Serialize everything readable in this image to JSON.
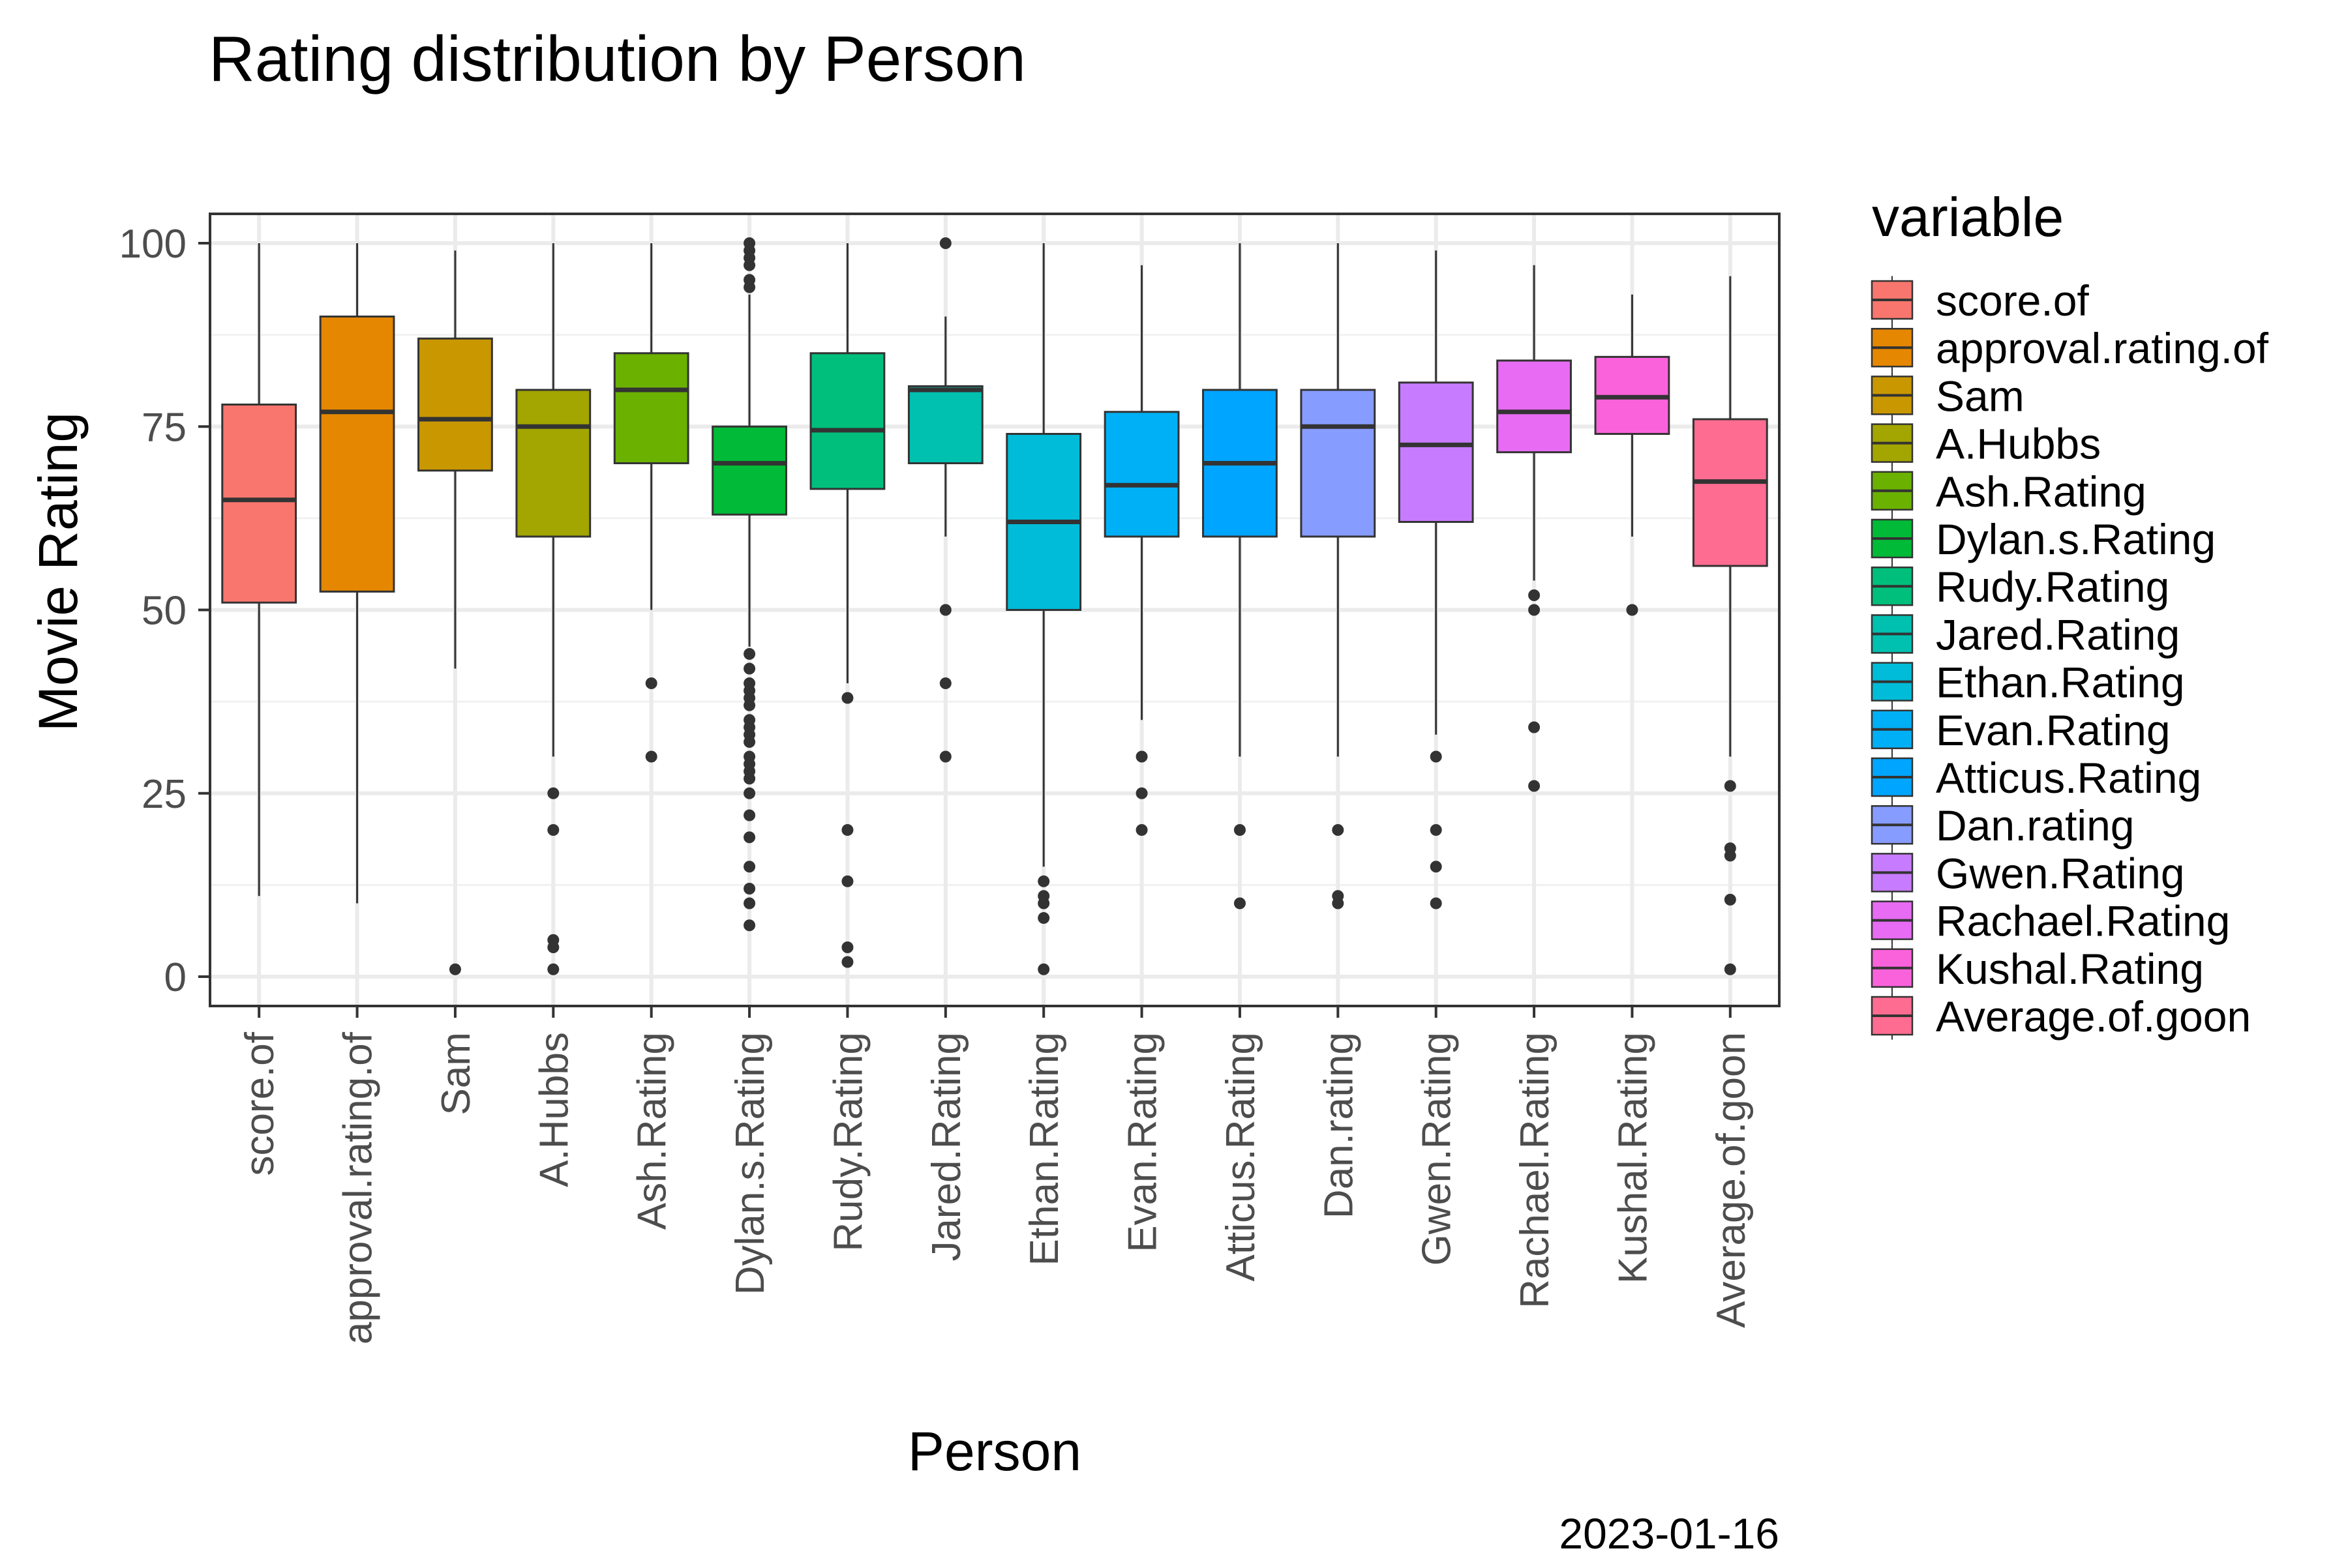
{
  "chart_data": {
    "type": "boxplot",
    "title": "Rating distribution by Person",
    "xlabel": "Person",
    "ylabel": "Movie Rating",
    "caption": "2023-01-16",
    "ylim": [
      -4,
      104
    ],
    "yticks": [
      0,
      25,
      50,
      75,
      100
    ],
    "grid": true,
    "legend": {
      "title": "variable",
      "position": "right"
    },
    "categories": [
      "score.of",
      "approval.rating.of",
      "Sam",
      "A.Hubbs",
      "Ash.Rating",
      "Dylan.s.Rating",
      "Rudy.Rating",
      "Jared.Rating",
      "Ethan.Rating",
      "Evan.Rating",
      "Atticus.Rating",
      "Dan.rating",
      "Gwen.Rating",
      "Rachael.Rating",
      "Kushal.Rating",
      "Average.of.goon"
    ],
    "colors": [
      "#F8766D",
      "#E58700",
      "#C99800",
      "#A3A500",
      "#6BB100",
      "#00BA38",
      "#00BF7D",
      "#00C0AF",
      "#00BCD8",
      "#00B0F6",
      "#00A5FF",
      "#879CFF",
      "#C77CFF",
      "#E76BF3",
      "#FA62DB",
      "#FF6C91"
    ],
    "boxes": [
      {
        "min": 11,
        "q1": 51,
        "median": 65,
        "q3": 78,
        "max": 100,
        "outliers": []
      },
      {
        "min": 10,
        "q1": 52.5,
        "median": 77,
        "q3": 90,
        "max": 100,
        "outliers": []
      },
      {
        "min": 42,
        "q1": 69,
        "median": 76,
        "q3": 87,
        "max": 99,
        "outliers": [
          1
        ]
      },
      {
        "min": 30,
        "q1": 60,
        "median": 75,
        "q3": 80,
        "max": 100,
        "outliers": [
          25,
          20,
          5,
          4,
          1
        ]
      },
      {
        "min": 50,
        "q1": 70,
        "median": 80,
        "q3": 85,
        "max": 100,
        "outliers": [
          40,
          30
        ]
      },
      {
        "min": 45,
        "q1": 63,
        "median": 70,
        "q3": 75,
        "max": 93,
        "outliers": [
          100,
          99,
          98,
          97,
          95,
          94,
          44,
          42,
          40,
          39,
          38,
          37,
          35,
          34,
          33,
          32,
          30,
          29,
          28,
          27,
          25,
          22,
          19,
          15,
          12,
          10,
          7
        ]
      },
      {
        "min": 40,
        "q1": 66.5,
        "median": 74.5,
        "q3": 85,
        "max": 100,
        "outliers": [
          38,
          20,
          13,
          4,
          2
        ]
      },
      {
        "min": 60,
        "q1": 70,
        "median": 80,
        "q3": 80.5,
        "max": 90,
        "outliers": [
          100,
          50,
          40,
          30
        ]
      },
      {
        "min": 15,
        "q1": 50,
        "median": 62,
        "q3": 74,
        "max": 100,
        "outliers": [
          13,
          11,
          10,
          8,
          1
        ]
      },
      {
        "min": 35,
        "q1": 60,
        "median": 67,
        "q3": 77,
        "max": 97,
        "outliers": [
          30,
          25,
          20
        ]
      },
      {
        "min": 30,
        "q1": 60,
        "median": 70,
        "q3": 80,
        "max": 100,
        "outliers": [
          20,
          10
        ]
      },
      {
        "min": 30,
        "q1": 60,
        "median": 75,
        "q3": 80,
        "max": 100,
        "outliers": [
          20,
          11,
          10
        ]
      },
      {
        "min": 33,
        "q1": 62,
        "median": 72.5,
        "q3": 81,
        "max": 99,
        "outliers": [
          30,
          20,
          15,
          10
        ]
      },
      {
        "min": 54,
        "q1": 71.5,
        "median": 77,
        "q3": 84,
        "max": 97,
        "outliers": [
          52,
          50,
          34,
          26
        ]
      },
      {
        "min": 60,
        "q1": 74,
        "median": 79,
        "q3": 84.5,
        "max": 93,
        "outliers": [
          50
        ]
      },
      {
        "min": 30,
        "q1": 56,
        "median": 67.5,
        "q3": 76,
        "max": 95.5,
        "outliers": [
          26,
          17.5,
          16.5,
          10.5,
          1
        ]
      }
    ]
  }
}
